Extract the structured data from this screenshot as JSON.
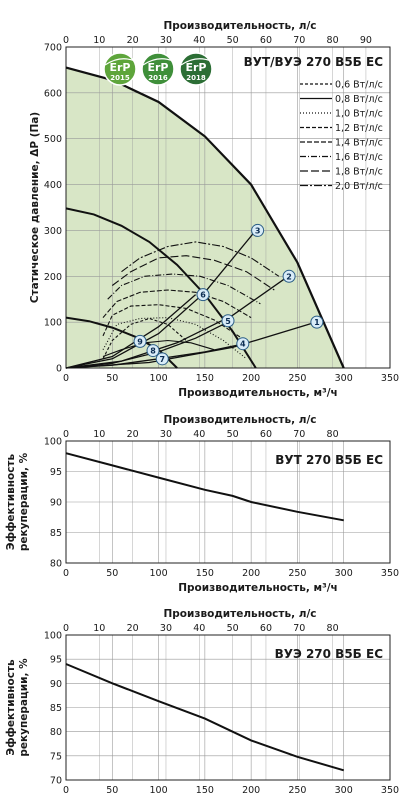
{
  "colors": {
    "fill_zone": "#d8e6c6",
    "grid": "#999999",
    "curve": "#111111",
    "point_fill": "#d9ecf8",
    "point_stroke": "#2a5d86",
    "erp2015": "#5ea53b",
    "erp2016": "#3f8f3a",
    "erp2018": "#2c6e35"
  },
  "badges": [
    {
      "icon": "erp-badge-icon",
      "top": "ErP",
      "year": "2015"
    },
    {
      "icon": "erp-badge-icon",
      "top": "ErP",
      "year": "2016"
    },
    {
      "icon": "erp-badge-icon",
      "top": "ErP",
      "year": "2018"
    }
  ],
  "chart_data": [
    {
      "type": "line",
      "title": "ВУТ/ВУЭ 270 В5Б ЕС",
      "xlabel": "Производительность, м³/ч",
      "ylabel": "Статическое давление, ΔP (Па)",
      "x2label": "Производительность, л/с",
      "xlim": [
        0,
        350
      ],
      "ylim": [
        0,
        700
      ],
      "xticks": [
        "0",
        "50",
        "100",
        "150",
        "200",
        "250",
        "300",
        "350"
      ],
      "yticks": [
        "0",
        "100",
        "200",
        "300",
        "400",
        "500",
        "600",
        "700"
      ],
      "x2ticks": [
        {
          "label": "0",
          "v": 0
        },
        {
          "label": "10",
          "v": 36
        },
        {
          "label": "20",
          "v": 72
        },
        {
          "label": "30",
          "v": 108
        },
        {
          "label": "40",
          "v": 144
        },
        {
          "label": "50",
          "v": 180
        },
        {
          "label": "60",
          "v": 216
        },
        {
          "label": "70",
          "v": 252
        },
        {
          "label": "80",
          "v": 288
        },
        {
          "label": "90",
          "v": 324
        }
      ],
      "grid": true,
      "legend_position": "top-right",
      "fan_curves": [
        {
          "name": "speed-max",
          "x": [
            0,
            50,
            100,
            150,
            200,
            250,
            300
          ],
          "y": [
            655,
            628,
            580,
            505,
            400,
            230,
            0
          ]
        },
        {
          "name": "speed-mid",
          "x": [
            0,
            30,
            60,
            90,
            120,
            150,
            180,
            205
          ],
          "y": [
            348,
            335,
            310,
            275,
            225,
            160,
            80,
            0
          ]
        },
        {
          "name": "speed-low",
          "x": [
            0,
            25,
            50,
            75,
            100,
            120
          ],
          "y": [
            110,
            102,
            88,
            68,
            40,
            0
          ]
        }
      ],
      "system_curves": [
        {
          "name": "1",
          "x": [
            0,
            90,
            180,
            270
          ],
          "y": [
            0,
            12,
            45,
            100
          ]
        },
        {
          "name": "2",
          "x": [
            0,
            60,
            120,
            180,
            240
          ],
          "y": [
            0,
            15,
            55,
            115,
            200
          ]
        },
        {
          "name": "3",
          "x": [
            0,
            50,
            100,
            150,
            205
          ],
          "y": [
            0,
            20,
            75,
            165,
            300
          ]
        },
        {
          "name": "4",
          "x": [
            0,
            50,
            100,
            150,
            190
          ],
          "y": [
            0,
            6,
            20,
            35,
            52
          ]
        },
        {
          "name": "5",
          "x": [
            0,
            50,
            100,
            140,
            175
          ],
          "y": [
            0,
            10,
            35,
            65,
            100
          ]
        },
        {
          "name": "6",
          "x": [
            0,
            50,
            100,
            140
          ],
          "y": [
            0,
            25,
            90,
            160
          ]
        }
      ],
      "power_curves": [
        {
          "name": "0,6 Вт/л/с",
          "dash": "3,2",
          "x": [
            40,
            50,
            70,
            90,
            110,
            130
          ],
          "y": [
            20,
            60,
            95,
            108,
            95,
            60
          ]
        },
        {
          "name": "0,8 Вт/л/с",
          "dash": "",
          "x": [
            40,
            60,
            85,
            110,
            135,
            160
          ],
          "y": [
            25,
            40,
            55,
            60,
            55,
            40
          ]
        },
        {
          "name": "1,0 Вт/л/с",
          "dash": "1,2",
          "x": [
            40,
            55,
            80,
            110,
            140,
            170,
            195
          ],
          "y": [
            40,
            95,
            108,
            110,
            95,
            60,
            20
          ]
        },
        {
          "name": "1,2 Вт/л/с",
          "dash": "4,2",
          "x": [
            40,
            50,
            70,
            100,
            130,
            160,
            190
          ],
          "y": [
            70,
            115,
            135,
            138,
            130,
            105,
            65
          ]
        },
        {
          "name": "1,4 Вт/л/с",
          "dash": "5,2",
          "x": [
            40,
            55,
            80,
            110,
            140,
            170,
            200
          ],
          "y": [
            110,
            145,
            165,
            170,
            165,
            145,
            110
          ]
        },
        {
          "name": "1,6 Вт/л/с",
          "dash": "6,2,1,2",
          "x": [
            45,
            60,
            85,
            115,
            145,
            175,
            210
          ],
          "y": [
            150,
            180,
            200,
            205,
            200,
            180,
            140
          ]
        },
        {
          "name": "1,8 Вт/л/с",
          "dash": "8,3",
          "x": [
            50,
            70,
            100,
            130,
            160,
            195,
            225
          ],
          "y": [
            180,
            210,
            240,
            245,
            235,
            210,
            170
          ]
        },
        {
          "name": "2,0 Вт/л/с",
          "dash": "8,2,2,2",
          "x": [
            60,
            80,
            110,
            140,
            170,
            200,
            230
          ],
          "y": [
            210,
            240,
            265,
            275,
            265,
            240,
            200
          ]
        }
      ],
      "points": [
        {
          "label": "1",
          "x": 271,
          "y": 100
        },
        {
          "label": "2",
          "x": 241,
          "y": 200
        },
        {
          "label": "3",
          "x": 207,
          "y": 300
        },
        {
          "label": "4",
          "x": 191,
          "y": 53
        },
        {
          "label": "5",
          "x": 175,
          "y": 103
        },
        {
          "label": "6",
          "x": 148,
          "y": 160
        },
        {
          "label": "7",
          "x": 104,
          "y": 20
        },
        {
          "label": "8",
          "x": 94,
          "y": 38
        },
        {
          "label": "9",
          "x": 80,
          "y": 58
        }
      ]
    },
    {
      "type": "line",
      "title": "ВУТ 270 В5Б ЕС",
      "xlabel": "Производительность, м³/ч",
      "ylabel": "Эффективность рекуперации, %",
      "x2label": "Производительность, л/с",
      "xlim": [
        0,
        350
      ],
      "ylim": [
        80,
        100
      ],
      "xticks": [
        "0",
        "50",
        "100",
        "150",
        "200",
        "250",
        "300",
        "350"
      ],
      "yticks": [
        "80",
        "85",
        "90",
        "95",
        "100"
      ],
      "x2ticks": [
        {
          "label": "0",
          "v": 0
        },
        {
          "label": "10",
          "v": 36
        },
        {
          "label": "20",
          "v": 72
        },
        {
          "label": "30",
          "v": 108
        },
        {
          "label": "40",
          "v": 144
        },
        {
          "label": "50",
          "v": 180
        },
        {
          "label": "60",
          "v": 216
        },
        {
          "label": "70",
          "v": 252
        },
        {
          "label": "80",
          "v": 288
        }
      ],
      "grid": true,
      "series": [
        {
          "x": [
            0,
            50,
            100,
            150,
            180,
            200,
            250,
            300
          ],
          "y": [
            98,
            96,
            94,
            92,
            91,
            90,
            88.4,
            87
          ]
        }
      ]
    },
    {
      "type": "line",
      "title": "ВУЭ 270 В5Б ЕС",
      "xlabel": "Производительность, м³/ч",
      "ylabel": "Эффективность рекуперации, %",
      "x2label": "Производительность, л/с",
      "xlim": [
        0,
        350
      ],
      "ylim": [
        70,
        100
      ],
      "xticks": [
        "0",
        "50",
        "100",
        "150",
        "200",
        "250",
        "300",
        "350"
      ],
      "yticks": [
        "70",
        "75",
        "80",
        "85",
        "90",
        "95",
        "100"
      ],
      "x2ticks": [
        {
          "label": "0",
          "v": 0
        },
        {
          "label": "10",
          "v": 36
        },
        {
          "label": "20",
          "v": 72
        },
        {
          "label": "30",
          "v": 108
        },
        {
          "label": "40",
          "v": 144
        },
        {
          "label": "50",
          "v": 180
        },
        {
          "label": "60",
          "v": 216
        },
        {
          "label": "70",
          "v": 252
        },
        {
          "label": "80",
          "v": 288
        }
      ],
      "grid": true,
      "series": [
        {
          "x": [
            0,
            50,
            100,
            150,
            200,
            250,
            300
          ],
          "y": [
            94,
            90,
            86.3,
            82.7,
            78.2,
            74.8,
            72
          ]
        }
      ]
    }
  ]
}
